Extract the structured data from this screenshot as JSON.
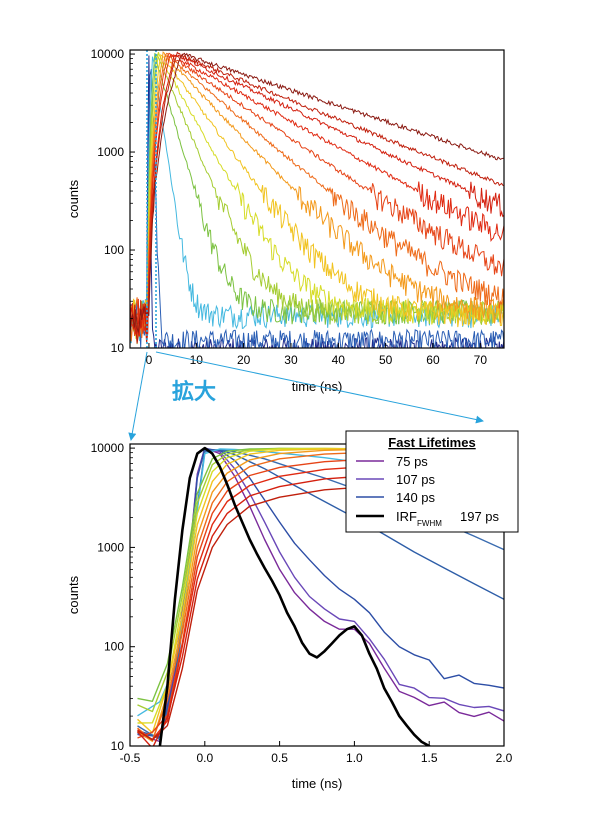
{
  "chart_data": [
    {
      "type": "line",
      "scale": "log-y",
      "xlabel": "time (ns)",
      "ylabel": "counts",
      "xlim": [
        -4,
        75
      ],
      "ylim": [
        10,
        11000
      ],
      "xticks": [
        "0",
        "10",
        "20",
        "30",
        "40",
        "50",
        "60",
        "70"
      ],
      "yticks": [
        "10",
        "100",
        "1000",
        "10000"
      ],
      "zoom_window_ns": [
        -0.5,
        2.0
      ],
      "series": [
        {
          "name": "irf",
          "color": "#1f2a8c",
          "peak": 0.0,
          "tau": 0.1,
          "floor": 10
        },
        {
          "name": "d1",
          "color": "#2b5fb5",
          "peak": 0.4,
          "tau": 0.3,
          "floor": 12
        },
        {
          "name": "d2",
          "color": "#45b9e0",
          "peak": 0.8,
          "tau": 1.3,
          "floor": 22
        },
        {
          "name": "d3",
          "color": "#7cc242",
          "peak": 1.2,
          "tau": 2.6,
          "floor": 24
        },
        {
          "name": "d4",
          "color": "#a5cc32",
          "peak": 1.6,
          "tau": 3.8,
          "floor": 24
        },
        {
          "name": "d5",
          "color": "#d6dc28",
          "peak": 2.0,
          "tau": 5.0,
          "floor": 24
        },
        {
          "name": "d6",
          "color": "#f1c320",
          "peak": 2.5,
          "tau": 6.5,
          "floor": 22
        },
        {
          "name": "d7",
          "color": "#f39a1c",
          "peak": 3.0,
          "tau": 8.5,
          "floor": 22
        },
        {
          "name": "d8",
          "color": "#ee6b1a",
          "peak": 3.5,
          "tau": 10.5,
          "floor": 22
        },
        {
          "name": "d9",
          "color": "#e64417",
          "peak": 4.0,
          "tau": 13.0,
          "floor": 22
        },
        {
          "name": "d10",
          "color": "#e02a12",
          "peak": 4.5,
          "tau": 16.0,
          "floor": 22
        },
        {
          "name": "d11",
          "color": "#d4200f",
          "peak": 5.5,
          "tau": 19.0,
          "floor": 22
        },
        {
          "name": "d12",
          "color": "#c01f0c",
          "peak": 6.0,
          "tau": 22.0,
          "floor": 22
        },
        {
          "name": "d13",
          "color": "#8b1a12",
          "peak": 7.0,
          "tau": 27.0,
          "floor": 22
        }
      ]
    },
    {
      "type": "line",
      "scale": "log-y",
      "xlabel": "time (ns)",
      "ylabel": "counts",
      "xlim": [
        -0.5,
        2.0
      ],
      "ylim": [
        10,
        11000
      ],
      "xticks": [
        "-0.5",
        "0.0",
        "0.5",
        "1.0",
        "1.5",
        "2.0"
      ],
      "yticks": [
        "10",
        "100",
        "1000",
        "10000"
      ],
      "legend": {
        "title": "Fast Lifetimes",
        "position": "top-right",
        "entries": [
          {
            "label": "75 ps",
            "color": "#7a2a9a"
          },
          {
            "label": "107 ps",
            "color": "#6a48b8"
          },
          {
            "label": "140 ps",
            "color": "#2d4ea6"
          },
          {
            "label": "IRF",
            "subscript": "FWHM",
            "suffix": "197 ps",
            "color": "#000000"
          }
        ]
      },
      "series": [
        {
          "name": "75 ps",
          "color": "#7a2a9a",
          "x": [
            -0.45,
            -0.3,
            -0.2,
            -0.1,
            -0.05,
            0.0,
            0.1,
            0.2,
            0.3,
            0.4,
            0.5,
            0.6,
            0.7,
            0.8,
            0.9,
            1.0,
            1.1,
            1.2,
            1.3,
            1.4,
            1.5,
            1.6,
            1.7,
            1.8,
            1.9,
            2.0
          ],
          "y": [
            14,
            12,
            60,
            900,
            5500,
            10000,
            8800,
            5200,
            2600,
            1200,
            600,
            350,
            240,
            180,
            150,
            150,
            95,
            55,
            40,
            32,
            28,
            25,
            24,
            22,
            20,
            18
          ]
        },
        {
          "name": "107 ps",
          "color": "#6a48b8",
          "x": [
            -0.45,
            -0.3,
            -0.2,
            -0.1,
            -0.05,
            0.0,
            0.1,
            0.2,
            0.3,
            0.4,
            0.5,
            0.6,
            0.7,
            0.8,
            0.9,
            1.0,
            1.1,
            1.2,
            1.3,
            1.4,
            1.5,
            1.6,
            1.7,
            1.8,
            1.9,
            2.0
          ],
          "y": [
            14,
            12,
            55,
            850,
            5300,
            10000,
            9200,
            6200,
            3500,
            1800,
            900,
            500,
            320,
            240,
            190,
            180,
            120,
            70,
            48,
            38,
            32,
            28,
            26,
            24,
            22,
            20
          ]
        },
        {
          "name": "140 ps",
          "color": "#2d4ea6",
          "x": [
            -0.45,
            -0.3,
            -0.2,
            -0.1,
            -0.05,
            0.0,
            0.1,
            0.2,
            0.3,
            0.4,
            0.5,
            0.6,
            0.7,
            0.8,
            0.9,
            1.0,
            1.1,
            1.2,
            1.3,
            1.4,
            1.5,
            1.6,
            1.7,
            1.8,
            1.9,
            2.0
          ],
          "y": [
            14,
            12,
            50,
            800,
            5000,
            9800,
            9500,
            7500,
            5000,
            3000,
            1800,
            1100,
            750,
            520,
            380,
            300,
            220,
            140,
            100,
            80,
            65,
            55,
            48,
            42,
            38,
            35
          ]
        },
        {
          "name": "c4",
          "color": "#2e5ea8",
          "x": [
            -0.45,
            -0.3,
            -0.2,
            -0.1,
            0.0,
            0.1,
            0.2,
            0.4,
            0.6,
            0.8,
            1.0,
            1.2,
            1.4,
            1.6,
            1.8,
            2.0
          ],
          "y": [
            14,
            12,
            45,
            700,
            9500,
            9600,
            8600,
            6200,
            4200,
            2900,
            2000,
            1350,
            900,
            620,
            430,
            300
          ]
        },
        {
          "name": "c5",
          "color": "#3a6cb0",
          "x": [
            -0.45,
            -0.3,
            -0.2,
            -0.1,
            0.0,
            0.1,
            0.2,
            0.4,
            0.6,
            0.8,
            1.0,
            1.2,
            1.4,
            1.6,
            1.8,
            2.0
          ],
          "y": [
            14,
            12,
            45,
            650,
            9200,
            9700,
            9200,
            7800,
            6200,
            5000,
            3900,
            3000,
            2300,
            1750,
            1300,
            950
          ]
        },
        {
          "name": "c6",
          "color": "#45b9e0",
          "x": [
            -0.45,
            -0.3,
            -0.2,
            -0.1,
            0.0,
            0.1,
            0.2,
            0.4,
            0.6,
            0.8,
            1.0,
            1.2,
            1.4,
            1.6,
            1.8,
            2.0
          ],
          "y": [
            18,
            25,
            70,
            650,
            8800,
            9800,
            9700,
            9200,
            8600,
            8000,
            7300,
            6600,
            5900,
            5300,
            4600,
            4000
          ]
        },
        {
          "name": "c7",
          "color": "#7cc242",
          "x": [
            -0.45,
            -0.35,
            -0.25,
            -0.15,
            -0.05,
            0.05,
            0.15,
            0.3,
            0.5,
            0.8,
            1.2,
            1.6,
            2.0
          ],
          "y": [
            30,
            25,
            60,
            400,
            3500,
            7800,
            9300,
            9800,
            9900,
            9800,
            9500,
            9100,
            8700
          ]
        },
        {
          "name": "c8",
          "color": "#a5cc32",
          "x": [
            -0.45,
            -0.35,
            -0.25,
            -0.15,
            -0.05,
            0.05,
            0.15,
            0.3,
            0.5,
            0.8,
            1.2,
            1.6,
            2.0
          ],
          "y": [
            24,
            20,
            50,
            330,
            2800,
            6800,
            8700,
            9600,
            9900,
            9900,
            9700,
            9400,
            9100
          ]
        },
        {
          "name": "c9",
          "color": "#d6dc28",
          "x": [
            -0.45,
            -0.35,
            -0.25,
            -0.15,
            -0.05,
            0.05,
            0.15,
            0.3,
            0.5,
            0.8,
            1.2,
            1.6,
            2.0
          ],
          "y": [
            20,
            16,
            42,
            270,
            2200,
            5800,
            8000,
            9300,
            9800,
            9900,
            9800,
            9600,
            9400
          ]
        },
        {
          "name": "c10",
          "color": "#f1c320",
          "x": [
            -0.45,
            -0.35,
            -0.25,
            -0.15,
            -0.05,
            0.05,
            0.15,
            0.3,
            0.5,
            0.8,
            1.2,
            1.6,
            2.0
          ],
          "y": [
            18,
            14,
            36,
            210,
            1700,
            4600,
            6900,
            8700,
            9500,
            9800,
            9800,
            9700,
            9600
          ]
        },
        {
          "name": "c11",
          "color": "#f39a1c",
          "x": [
            -0.45,
            -0.35,
            -0.25,
            -0.15,
            -0.05,
            0.05,
            0.15,
            0.3,
            0.5,
            0.8,
            1.2,
            1.6,
            2.0
          ],
          "y": [
            16,
            13,
            30,
            170,
            1300,
            3600,
            5600,
            7600,
            8800,
            9500,
            9800,
            9800,
            9700
          ]
        },
        {
          "name": "c12",
          "color": "#ee6b1a",
          "x": [
            -0.45,
            -0.35,
            -0.25,
            -0.15,
            -0.05,
            0.05,
            0.15,
            0.3,
            0.5,
            0.8,
            1.2,
            1.6,
            2.0
          ],
          "y": [
            15,
            12,
            26,
            140,
            1000,
            2800,
            4600,
            6500,
            7800,
            8700,
            9200,
            9400,
            9500
          ]
        },
        {
          "name": "c13",
          "color": "#e64417",
          "x": [
            -0.45,
            -0.35,
            -0.25,
            -0.15,
            -0.05,
            0.05,
            0.15,
            0.3,
            0.5,
            0.8,
            1.2,
            1.6,
            2.0
          ],
          "y": [
            14,
            12,
            22,
            110,
            800,
            2200,
            3700,
            5300,
            6400,
            7300,
            7900,
            8300,
            8600
          ]
        },
        {
          "name": "c14",
          "color": "#e02a12",
          "x": [
            -0.45,
            -0.35,
            -0.25,
            -0.15,
            -0.05,
            0.05,
            0.15,
            0.3,
            0.5,
            0.8,
            1.2,
            1.6,
            2.0
          ],
          "y": [
            14,
            12,
            20,
            90,
            620,
            1700,
            2900,
            4200,
            5200,
            6100,
            6700,
            7100,
            7400
          ]
        },
        {
          "name": "c15",
          "color": "#d4200f",
          "x": [
            -0.45,
            -0.35,
            -0.25,
            -0.15,
            -0.05,
            0.05,
            0.15,
            0.3,
            0.5,
            0.8,
            1.2,
            1.6,
            2.0
          ],
          "y": [
            13,
            11,
            18,
            70,
            480,
            1300,
            2200,
            3300,
            4100,
            4900,
            5400,
            5800,
            6100
          ]
        },
        {
          "name": "c16",
          "color": "#c01f0c",
          "x": [
            -0.45,
            -0.35,
            -0.25,
            -0.15,
            -0.05,
            0.05,
            0.15,
            0.3,
            0.5,
            0.8,
            1.2,
            1.6,
            2.0
          ],
          "y": [
            13,
            11,
            16,
            55,
            370,
            1000,
            1700,
            2600,
            3200,
            3800,
            4200,
            4500,
            4700
          ]
        },
        {
          "name": "IRF",
          "color": "#000000",
          "x": [
            -0.35,
            -0.3,
            -0.25,
            -0.2,
            -0.15,
            -0.1,
            -0.05,
            0.0,
            0.05,
            0.1,
            0.15,
            0.2,
            0.25,
            0.3,
            0.35,
            0.4,
            0.45,
            0.5,
            0.55,
            0.6,
            0.65,
            0.7,
            0.75,
            0.8,
            0.85,
            0.9,
            0.95,
            1.0,
            1.05,
            1.1,
            1.15,
            1.2,
            1.25,
            1.3,
            1.35,
            1.4,
            1.45,
            1.5,
            1.55
          ],
          "y": [
            8,
            10,
            40,
            300,
            1500,
            5000,
            8800,
            10000,
            8800,
            6500,
            4300,
            2700,
            1800,
            1200,
            850,
            620,
            460,
            330,
            220,
            160,
            110,
            85,
            78,
            90,
            108,
            130,
            150,
            160,
            130,
            85,
            60,
            38,
            28,
            20,
            16,
            13,
            11,
            10,
            8
          ]
        }
      ]
    }
  ],
  "annotation": {
    "zoom_label": "拡大"
  }
}
